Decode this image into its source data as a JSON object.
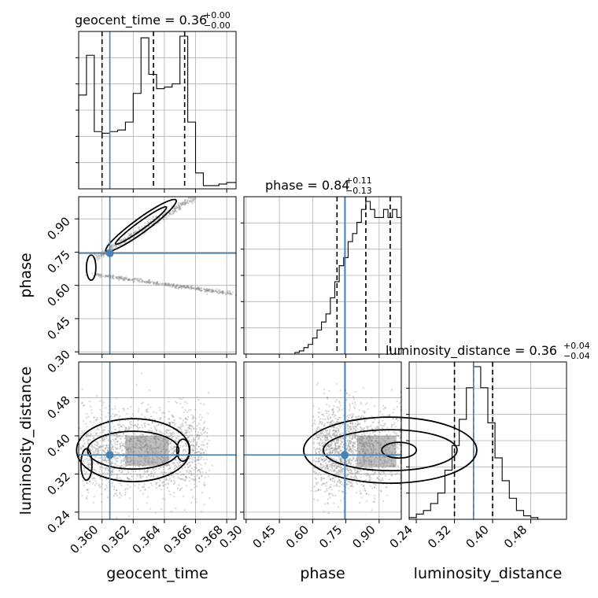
{
  "chart_data": {
    "type": "corner",
    "parameters": [
      "geocent_time",
      "phase",
      "luminosity_distance"
    ],
    "truths": {
      "geocent_time": 0.3605,
      "phase": 0.745,
      "luminosity_distance": 0.36
    },
    "titles": [
      {
        "param": "geocent_time",
        "label": "geocent_time = 0.36",
        "plus": "+0.00",
        "minus": "−0.00"
      },
      {
        "param": "phase",
        "label": "phase = 0.84",
        "plus": "+0.11",
        "minus": "−0.13"
      },
      {
        "param": "luminosity_distance",
        "label": "luminosity_distance = 0.36",
        "plus": "+0.04",
        "minus": "−0.04"
      }
    ],
    "ranges": {
      "geocent_time": [
        0.3585,
        0.3686
      ],
      "phase": [
        0.29,
        1.0
      ],
      "luminosity_distance": [
        0.225,
        0.555
      ]
    },
    "ticks": {
      "geocent_time": [
        "0.360",
        "0.362",
        "0.364",
        "0.366",
        "0.368"
      ],
      "phase": [
        "0.30",
        "0.45",
        "0.60",
        "0.75",
        "0.90"
      ],
      "luminosity_distance": [
        "0.24",
        "0.32",
        "0.40",
        "0.48"
      ]
    },
    "axis_labels": {
      "geocent_time": "geocent_time",
      "phase": "phase",
      "luminosity_distance": "luminosity_distance"
    },
    "quantiles": {
      "geocent_time": [
        0.36,
        0.3633,
        0.3653
      ],
      "phase": [
        0.71,
        0.84,
        0.95
      ],
      "luminosity_distance": [
        0.32,
        0.36,
        0.4
      ]
    },
    "histograms": {
      "geocent_time": {
        "edges": [
          0.3585,
          0.359,
          0.3595,
          0.36,
          0.3605,
          0.361,
          0.3615,
          0.362,
          0.3625,
          0.363,
          0.3635,
          0.364,
          0.3645,
          0.365,
          0.3655,
          0.366,
          0.3665,
          0.367,
          0.3675,
          0.368,
          0.3686
        ],
        "counts": [
          0.59,
          0.84,
          0.36,
          0.35,
          0.36,
          0.37,
          0.42,
          0.6,
          0.95,
          0.72,
          0.63,
          0.64,
          0.66,
          0.96,
          0.42,
          0.1,
          0.02,
          0.02,
          0.03,
          0.04
        ]
      },
      "phase": {
        "edges": [
          0.3,
          0.32,
          0.34,
          0.36,
          0.38,
          0.4,
          0.42,
          0.44,
          0.46,
          0.48,
          0.5,
          0.52,
          0.54,
          0.56,
          0.58,
          0.6,
          0.62,
          0.64,
          0.66,
          0.68,
          0.7,
          0.72,
          0.74,
          0.76,
          0.78,
          0.8,
          0.82,
          0.84,
          0.86,
          0.88,
          0.9,
          0.92,
          0.94,
          0.96,
          0.98,
          1.0
        ],
        "counts": [
          0.0,
          0.0,
          0.0,
          0.0,
          0.0,
          0.0,
          0.0,
          0.0,
          0.0,
          0.0,
          0.0,
          0.01,
          0.02,
          0.04,
          0.06,
          0.1,
          0.15,
          0.2,
          0.25,
          0.35,
          0.45,
          0.55,
          0.6,
          0.7,
          0.75,
          0.82,
          0.9,
          0.95,
          0.9,
          0.85,
          0.85,
          0.9,
          0.85,
          0.9,
          0.85
        ]
      },
      "luminosity_distance": {
        "edges": [
          0.225,
          0.24,
          0.255,
          0.27,
          0.285,
          0.3,
          0.315,
          0.33,
          0.345,
          0.36,
          0.375,
          0.39,
          0.405,
          0.42,
          0.435,
          0.45,
          0.465,
          0.48,
          0.495,
          0.51,
          0.525,
          0.54,
          0.555
        ],
        "counts": [
          0.01,
          0.03,
          0.05,
          0.09,
          0.15,
          0.28,
          0.42,
          0.57,
          0.75,
          0.87,
          0.75,
          0.55,
          0.35,
          0.22,
          0.12,
          0.05,
          0.02,
          0.01,
          0.0,
          0.0,
          0.0,
          0.0
        ]
      }
    }
  }
}
